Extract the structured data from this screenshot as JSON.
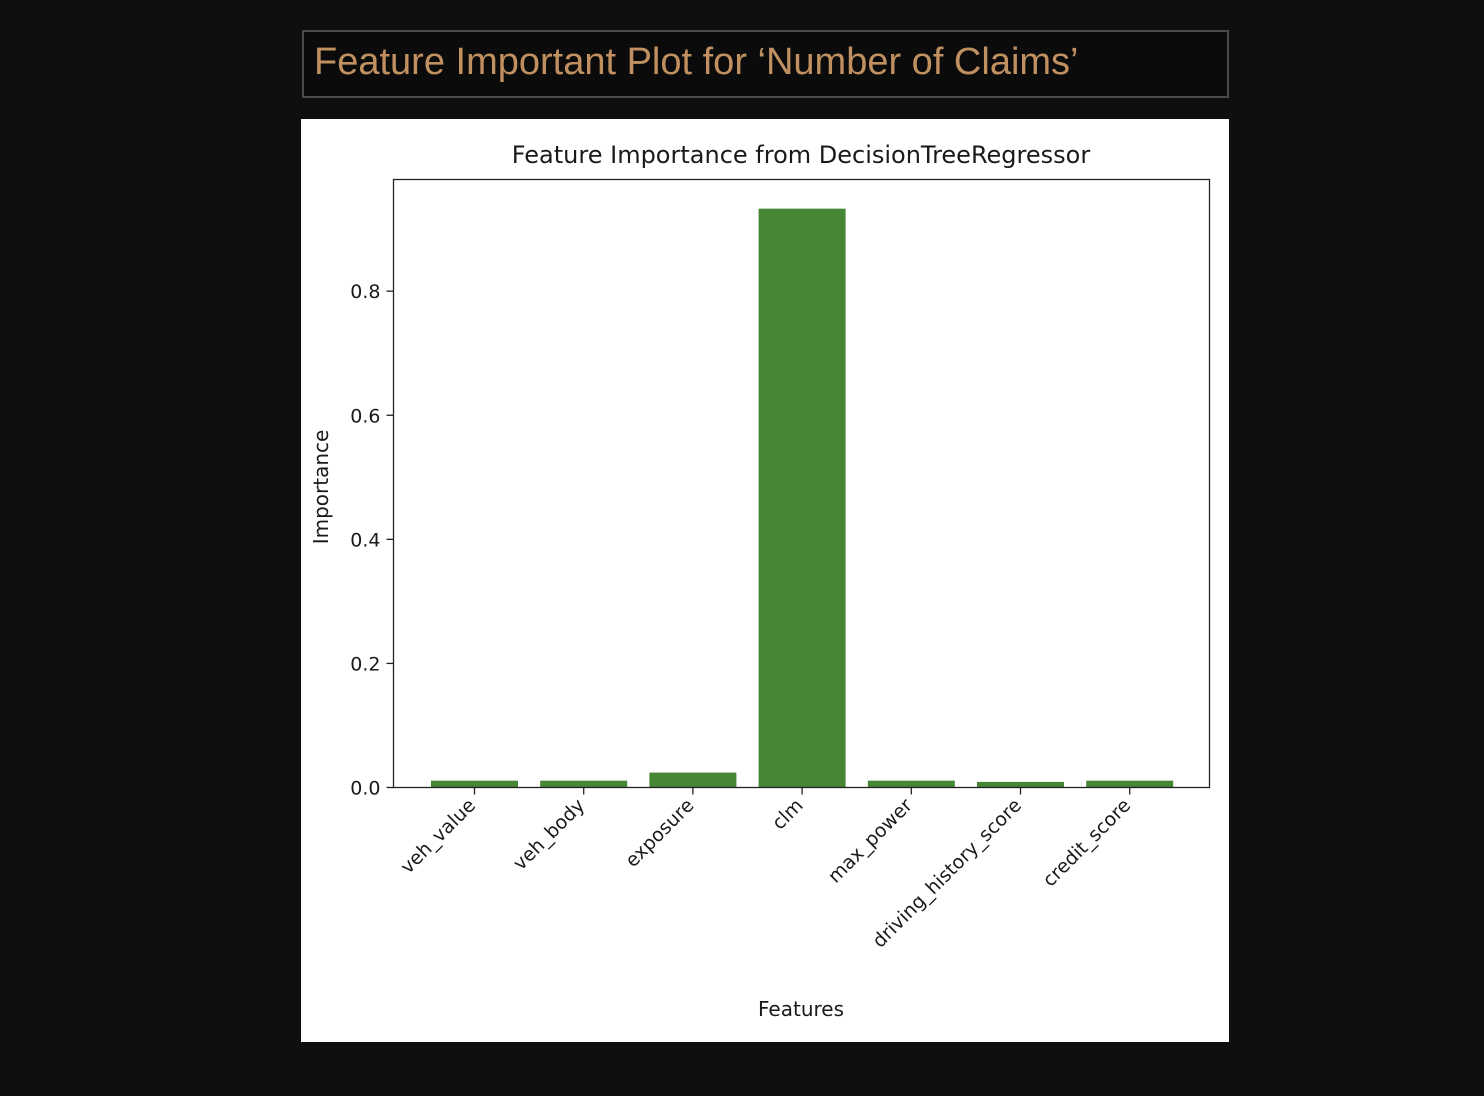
{
  "slide": {
    "title": "Feature Important Plot for ‘Number of Claims’"
  },
  "colors": {
    "background": "#0f0f0f",
    "title_text": "#c09060",
    "bar": "#468634"
  },
  "chart_data": {
    "type": "bar",
    "title": "Feature Importance from DecisionTreeRegressor",
    "xlabel": "Features",
    "ylabel": "Importance",
    "categories": [
      "veh_value",
      "veh_body",
      "exposure",
      "clm",
      "max_power",
      "driving_history_score",
      "credit_score"
    ],
    "values": [
      0.011,
      0.011,
      0.024,
      0.933,
      0.011,
      0.009,
      0.011
    ],
    "ylim": [
      0,
      0.98
    ],
    "yticks": [
      0.0,
      0.2,
      0.4,
      0.6,
      0.8
    ],
    "ytick_labels": [
      "0.0",
      "0.2",
      "0.4",
      "0.6",
      "0.8"
    ],
    "xtick_rotation": -45,
    "grid": false,
    "legend": null
  }
}
